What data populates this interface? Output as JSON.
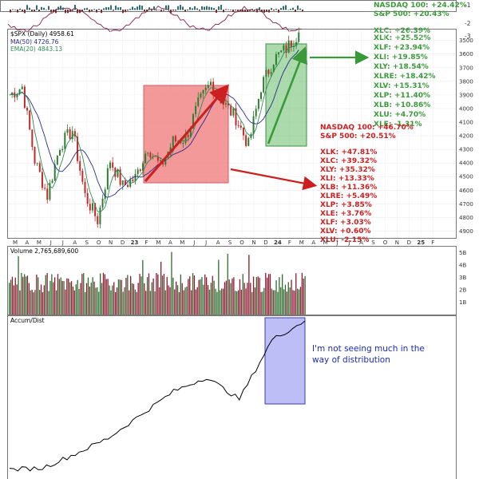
{
  "colors": {
    "up": "#2e7d32",
    "down": "#c62828",
    "ma50": "#2a2a8c",
    "ema20": "#2e8b57",
    "red_box": "#f08080",
    "green_box": "#66bb6a",
    "blue_box": "#6b6bf0",
    "annot_green": "#3a9a3a",
    "annot_red": "#cc1f1f",
    "annot_blue": "#1a2bb8"
  },
  "top_strip": {
    "y_ticks": [
      "-1",
      "-2",
      "-3"
    ],
    "annotations": [
      "NASDAQ 100:  +24.42%",
      "S&P 500:  +20.43%"
    ]
  },
  "price_panel": {
    "legend": [
      "$SPX (Daily) 4958.61",
      "MA(50) 4726.76",
      "EMA(20) 4843.13"
    ],
    "y_ticks": [
      "4900",
      "4800",
      "4700",
      "4600",
      "4500",
      "4400",
      "4300",
      "4200",
      "4100",
      "4000",
      "3900",
      "3800",
      "3700",
      "3600",
      "3500"
    ],
    "x_labels": [
      "M",
      "A",
      "M",
      "J",
      "J",
      "A",
      "S",
      "O",
      "N",
      "D",
      "23",
      "F",
      "M",
      "A",
      "M",
      "J",
      "J",
      "A",
      "S",
      "O",
      "N",
      "D",
      "24",
      "F",
      "M",
      "A",
      "M",
      "J",
      "J",
      "A",
      "S",
      "O",
      "N",
      "D",
      "25",
      "F"
    ]
  },
  "green_list": {
    "header": [
      "XLC:  +26.39%",
      "XLK:  +25.52%"
    ],
    "items": [
      "XLF:  +23.94%",
      "XLI:  +19.85%",
      "XLY:  +18.54%",
      "XLRE:  +18.42%",
      "XLV:  +15.31%",
      "XLP:  +11.40%",
      "XLB:  +10.86%",
      "XLU:  +4.70%",
      "XLE:  -1.31%"
    ]
  },
  "red_list": {
    "header": [
      "NASDAQ 100:  +46.70%",
      "S&P 500:  +20.51%"
    ],
    "items": [
      "XLK:  +47.81%",
      "XLC:  +39.32%",
      "XLY:  +35.32%",
      "XLI:  +13.33%",
      "XLB:  +11.36%",
      "XLRE:  +5.49%",
      "XLP:  +3.85%",
      "XLE:  +3.76%",
      "XLF:  +3.03%",
      "XLV:  +0.60%",
      "XLU:  -2.15%"
    ]
  },
  "volume_panel": {
    "label": "Volume 2,765,689,600",
    "y_ticks": [
      "5B",
      "4B",
      "3B",
      "2B",
      "1B"
    ]
  },
  "ad_panel": {
    "label": "Accum/Dist",
    "annotation": [
      "I'm not seeing much in the",
      "way of distribution"
    ]
  },
  "chart_data": [
    {
      "type": "line",
      "title": "$SPX (Daily) 4958.61",
      "ylim": [
        3450,
        4980
      ],
      "y_ticks": [
        3500,
        3600,
        3700,
        3800,
        3900,
        4000,
        4100,
        4200,
        4300,
        4400,
        4500,
        4600,
        4700,
        4800,
        4900
      ],
      "series": [
        {
          "name": "$SPX (Daily) 4958.61",
          "x": [
            "Mar 2022",
            "Apr 2022",
            "May 2022",
            "Jun 2022",
            "Jul 2022",
            "Aug 2022",
            "Sep 2022",
            "Oct 2022",
            "Nov 2022",
            "Dec 2022",
            "Jan 2023",
            "Feb 2023",
            "Mar 2023",
            "Apr 2023",
            "May 2023",
            "Jun 2023",
            "Jul 2023",
            "Aug 2023",
            "Sep 2023",
            "Oct 2023",
            "Nov 2023",
            "Dec 2023",
            "Jan 2024",
            "Feb 2024"
          ],
          "values": [
            4500,
            4560,
            4020,
            3760,
            4130,
            4240,
            3760,
            3580,
            4020,
            3830,
            3890,
            4120,
            3970,
            4160,
            4180,
            4430,
            4590,
            4440,
            4330,
            4130,
            4560,
            4760,
            4840,
            4958.61
          ]
        },
        {
          "name": "MA(50) 4726.76",
          "x": [
            "Feb 2024"
          ],
          "values": [
            4726.76
          ]
        },
        {
          "name": "EMA(20) 4843.13",
          "x": [
            "Feb 2024"
          ],
          "values": [
            4843.13
          ]
        }
      ]
    },
    {
      "type": "bar",
      "title": "Volume 2,765,689,600",
      "ylim": [
        0,
        5500000000
      ],
      "y_ticks": [
        "5B",
        "4B",
        "3B",
        "2B",
        "1B"
      ],
      "latest": 2765689600
    },
    {
      "type": "line",
      "title": "Accum/Dist",
      "series": [
        {
          "name": "Accum/Dist",
          "x": [
            "Mar 2022",
            "Jun 2022",
            "Sep 2022",
            "Dec 2022",
            "Mar 2023",
            "Jun 2023",
            "Aug 2023",
            "Oct 2023",
            "Dec 2023",
            "Feb 2024"
          ],
          "values": [
            0.05,
            0.06,
            0.15,
            0.25,
            0.4,
            0.55,
            0.64,
            0.5,
            0.88,
            1.0
          ]
        }
      ]
    }
  ]
}
